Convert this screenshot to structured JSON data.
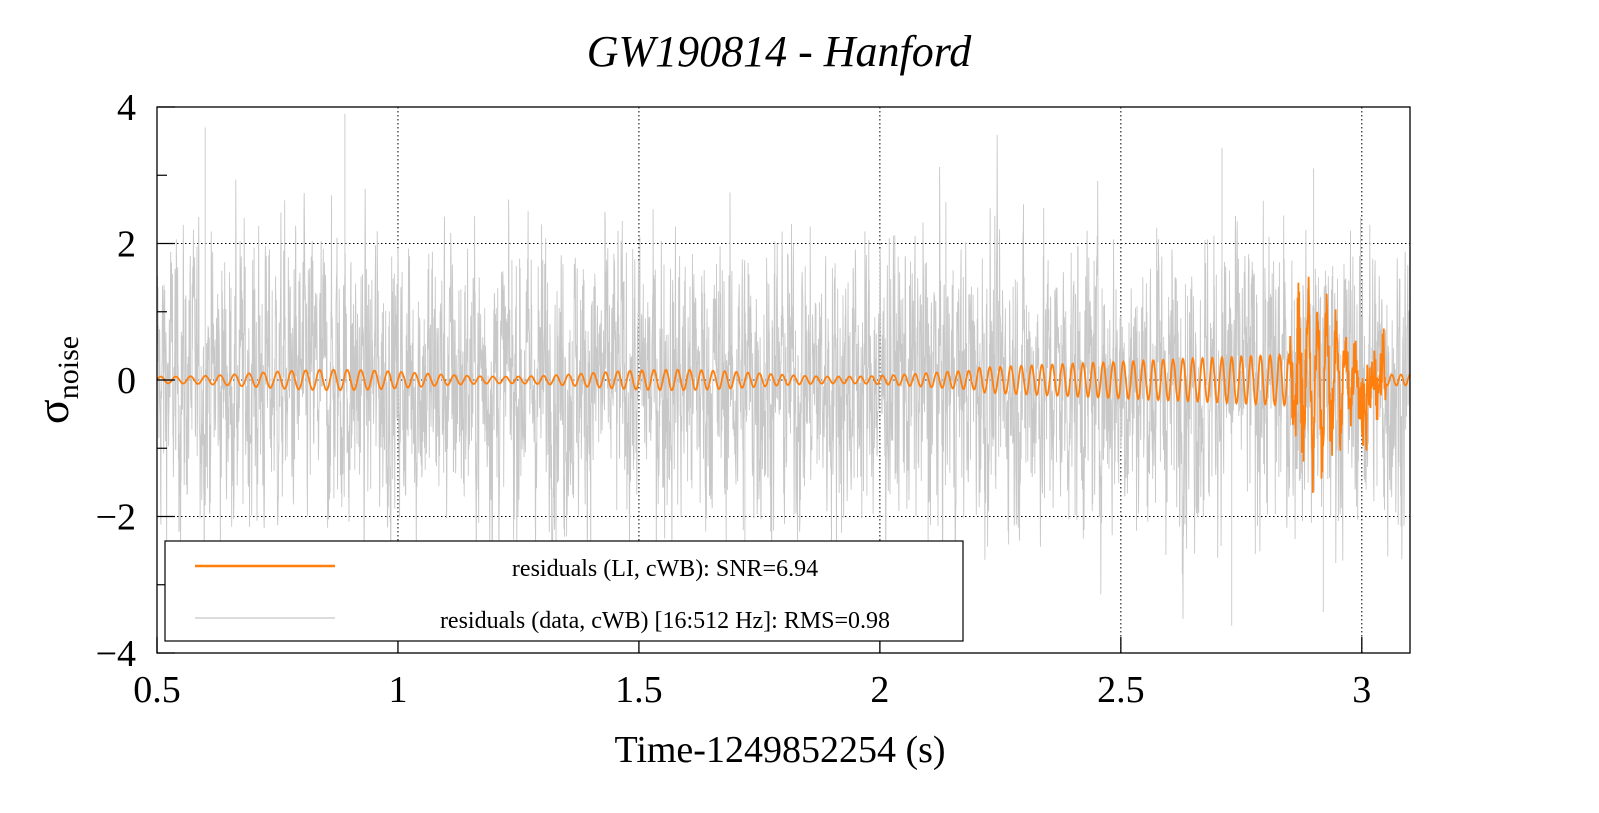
{
  "chart_data": {
    "type": "line",
    "title": "GW190814 - Hanford",
    "xlabel": "Time-1249852254 (s)",
    "ylabel_main": "σ",
    "ylabel_sub": "noise",
    "xlim": [
      0.5,
      3.1
    ],
    "ylim": [
      -4,
      4
    ],
    "xticks": [
      0.5,
      1,
      1.5,
      2,
      2.5,
      3
    ],
    "xtick_labels": [
      "0.5",
      "1",
      "1.5",
      "2",
      "2.5",
      "3"
    ],
    "yticks": [
      -4,
      -2,
      0,
      2,
      4
    ],
    "ytick_labels": [
      "−4",
      "−2",
      "0",
      "2",
      "4"
    ],
    "grid": true,
    "legend_position": "bottom-left",
    "series": [
      {
        "name": "residuals (data, cWB) [16:512 Hz]: RMS=0.98",
        "color": "#c8c8c8",
        "role": "noise",
        "rms": 0.98,
        "sample_points": [
          [
            0.5,
            0.0
          ],
          [
            0.75,
            -0.3
          ],
          [
            1.0,
            0.4
          ],
          [
            1.25,
            -0.2
          ],
          [
            1.5,
            0.1
          ],
          [
            1.75,
            0.3
          ],
          [
            2.0,
            -0.1
          ],
          [
            2.25,
            0.2
          ],
          [
            2.5,
            -0.4
          ],
          [
            2.75,
            0.3
          ],
          [
            3.0,
            -0.2
          ],
          [
            3.1,
            0.0
          ]
        ],
        "peak_points": [
          [
            0.89,
            3.9
          ],
          [
            0.6,
            3.7
          ],
          [
            2.71,
            3.4
          ],
          [
            2.9,
            3.1
          ],
          [
            2.1,
            -3.2
          ],
          [
            2.73,
            -3.6
          ],
          [
            2.92,
            -3.4
          ],
          [
            1.72,
            -3.0
          ]
        ]
      },
      {
        "name": "residuals (LI, cWB): SNR=6.94",
        "color": "#ff7f0e",
        "role": "signal",
        "snr": 6.94,
        "sample_points": [
          [
            0.5,
            0.0
          ],
          [
            0.7,
            0.1
          ],
          [
            1.0,
            -0.1
          ],
          [
            1.25,
            0.1
          ],
          [
            1.5,
            0.05
          ],
          [
            1.75,
            -0.08
          ],
          [
            2.0,
            0.0
          ],
          [
            2.25,
            -0.2
          ],
          [
            2.5,
            0.15
          ],
          [
            2.7,
            -0.3
          ],
          [
            2.8,
            0.5
          ],
          [
            2.88,
            0.9
          ],
          [
            2.9,
            -0.9
          ],
          [
            2.98,
            0.8
          ],
          [
            3.0,
            -1.2
          ],
          [
            3.05,
            0.2
          ],
          [
            3.1,
            0.0
          ]
        ]
      }
    ]
  }
}
